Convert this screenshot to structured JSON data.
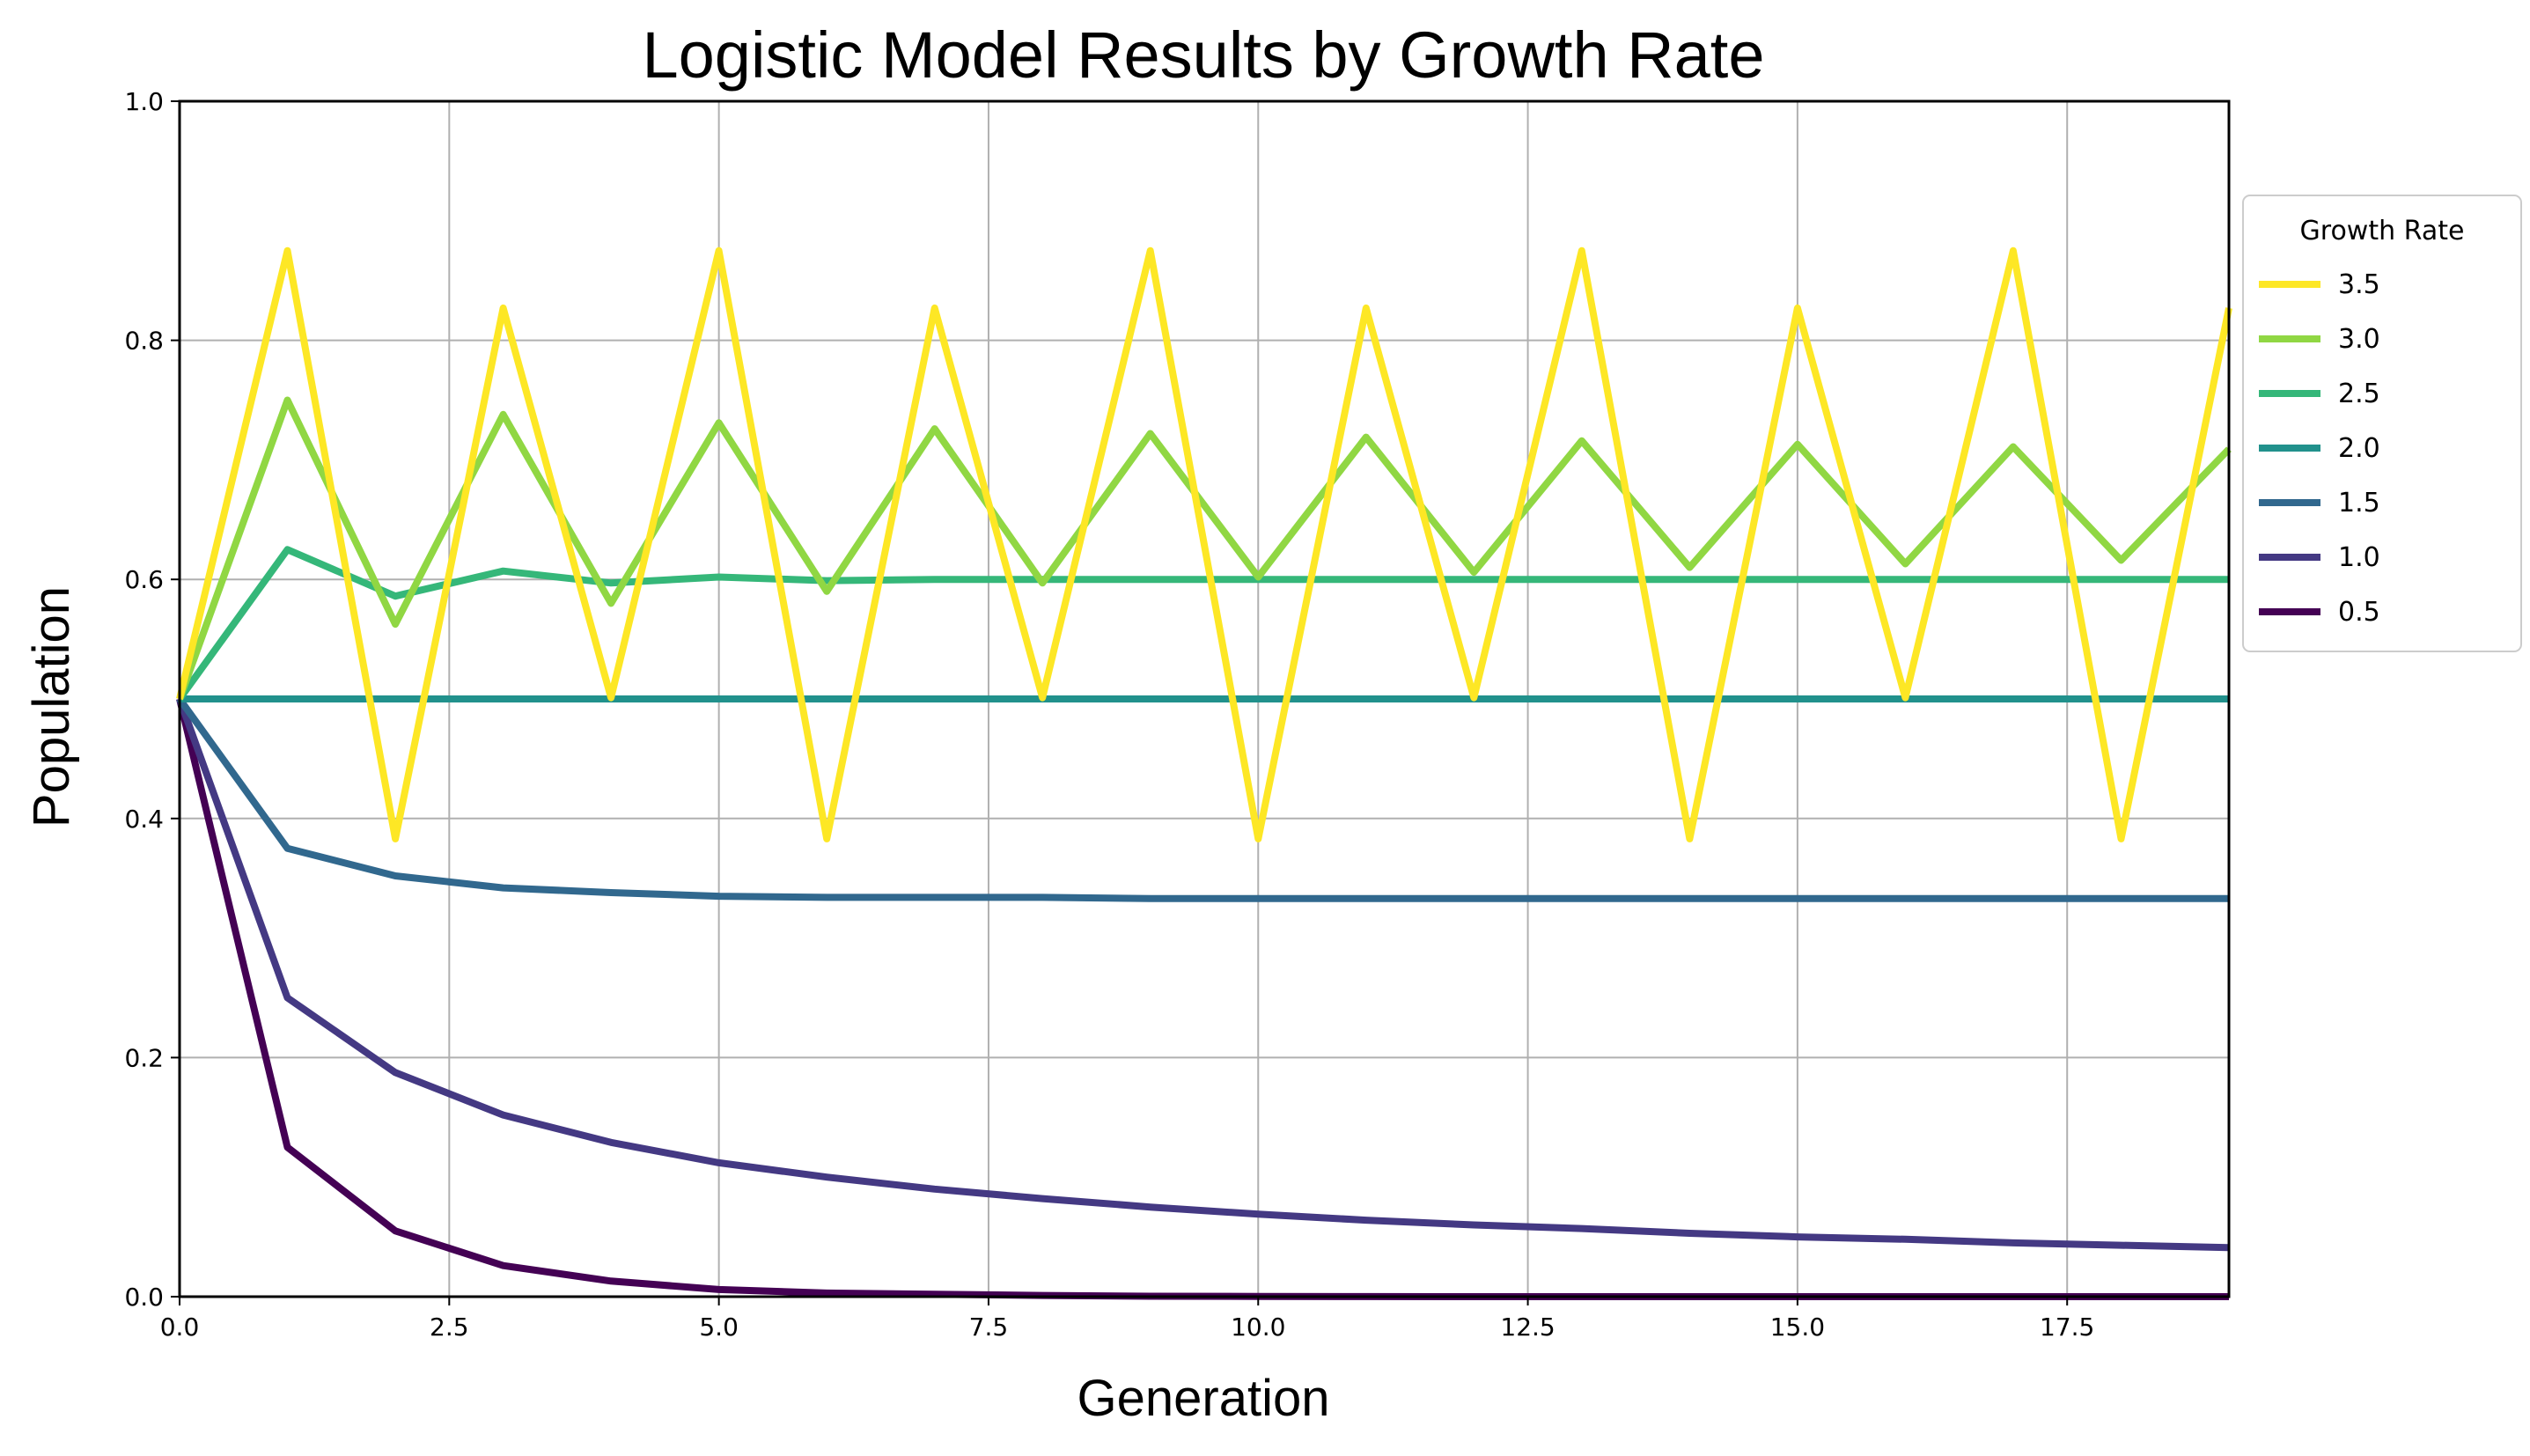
{
  "chart_data": {
    "type": "line",
    "title": "Logistic Model Results by Growth Rate",
    "xlabel": "Generation",
    "ylabel": "Population",
    "xlim": [
      0,
      19
    ],
    "ylim": [
      0,
      1.0
    ],
    "grid": true,
    "legend_title": "Growth Rate",
    "legend_position": "outside-right",
    "x_ticks": [
      "0.0",
      "2.5",
      "5.0",
      "7.5",
      "10.0",
      "12.5",
      "15.0",
      "17.5"
    ],
    "y_ticks": [
      "0.0",
      "0.2",
      "0.4",
      "0.6",
      "0.8",
      "1.0"
    ],
    "x": [
      0,
      1,
      2,
      3,
      4,
      5,
      6,
      7,
      8,
      9,
      10,
      11,
      12,
      13,
      14,
      15,
      16,
      17,
      18,
      19
    ],
    "series": [
      {
        "name": "3.5",
        "color": "#fde725",
        "values": [
          0.5,
          0.875,
          0.383,
          0.827,
          0.501,
          0.875,
          0.383,
          0.827,
          0.501,
          0.875,
          0.383,
          0.827,
          0.501,
          0.875,
          0.383,
          0.827,
          0.501,
          0.875,
          0.383,
          0.827
        ]
      },
      {
        "name": "3.0",
        "color": "#90d743",
        "values": [
          0.5,
          0.75,
          0.5625,
          0.738,
          0.58,
          0.731,
          0.59,
          0.726,
          0.597,
          0.722,
          0.602,
          0.719,
          0.606,
          0.716,
          0.61,
          0.713,
          0.613,
          0.711,
          0.616,
          0.709
        ]
      },
      {
        "name": "2.5",
        "color": "#35b779",
        "values": [
          0.5,
          0.625,
          0.586,
          0.607,
          0.597,
          0.602,
          0.599,
          0.6,
          0.6,
          0.6,
          0.6,
          0.6,
          0.6,
          0.6,
          0.6,
          0.6,
          0.6,
          0.6,
          0.6,
          0.6
        ]
      },
      {
        "name": "2.0",
        "color": "#21918c",
        "values": [
          0.5,
          0.5,
          0.5,
          0.5,
          0.5,
          0.5,
          0.5,
          0.5,
          0.5,
          0.5,
          0.5,
          0.5,
          0.5,
          0.5,
          0.5,
          0.5,
          0.5,
          0.5,
          0.5,
          0.5
        ]
      },
      {
        "name": "1.5",
        "color": "#31688e",
        "values": [
          0.5,
          0.375,
          0.352,
          0.342,
          0.338,
          0.335,
          0.334,
          0.334,
          0.334,
          0.333,
          0.333,
          0.333,
          0.333,
          0.333,
          0.333,
          0.333,
          0.333,
          0.333,
          0.333,
          0.333
        ]
      },
      {
        "name": "1.0",
        "color": "#443983",
        "values": [
          0.5,
          0.25,
          0.1875,
          0.152,
          0.129,
          0.112,
          0.1,
          0.09,
          0.082,
          0.075,
          0.069,
          0.064,
          0.06,
          0.057,
          0.053,
          0.05,
          0.048,
          0.045,
          0.043,
          0.041
        ]
      },
      {
        "name": "0.5",
        "color": "#440154",
        "values": [
          0.5,
          0.125,
          0.055,
          0.026,
          0.013,
          0.006,
          0.003,
          0.002,
          0.001,
          0.0004,
          0.0002,
          0.0001,
          0,
          0,
          0,
          0,
          0,
          0,
          0,
          0
        ]
      }
    ]
  }
}
